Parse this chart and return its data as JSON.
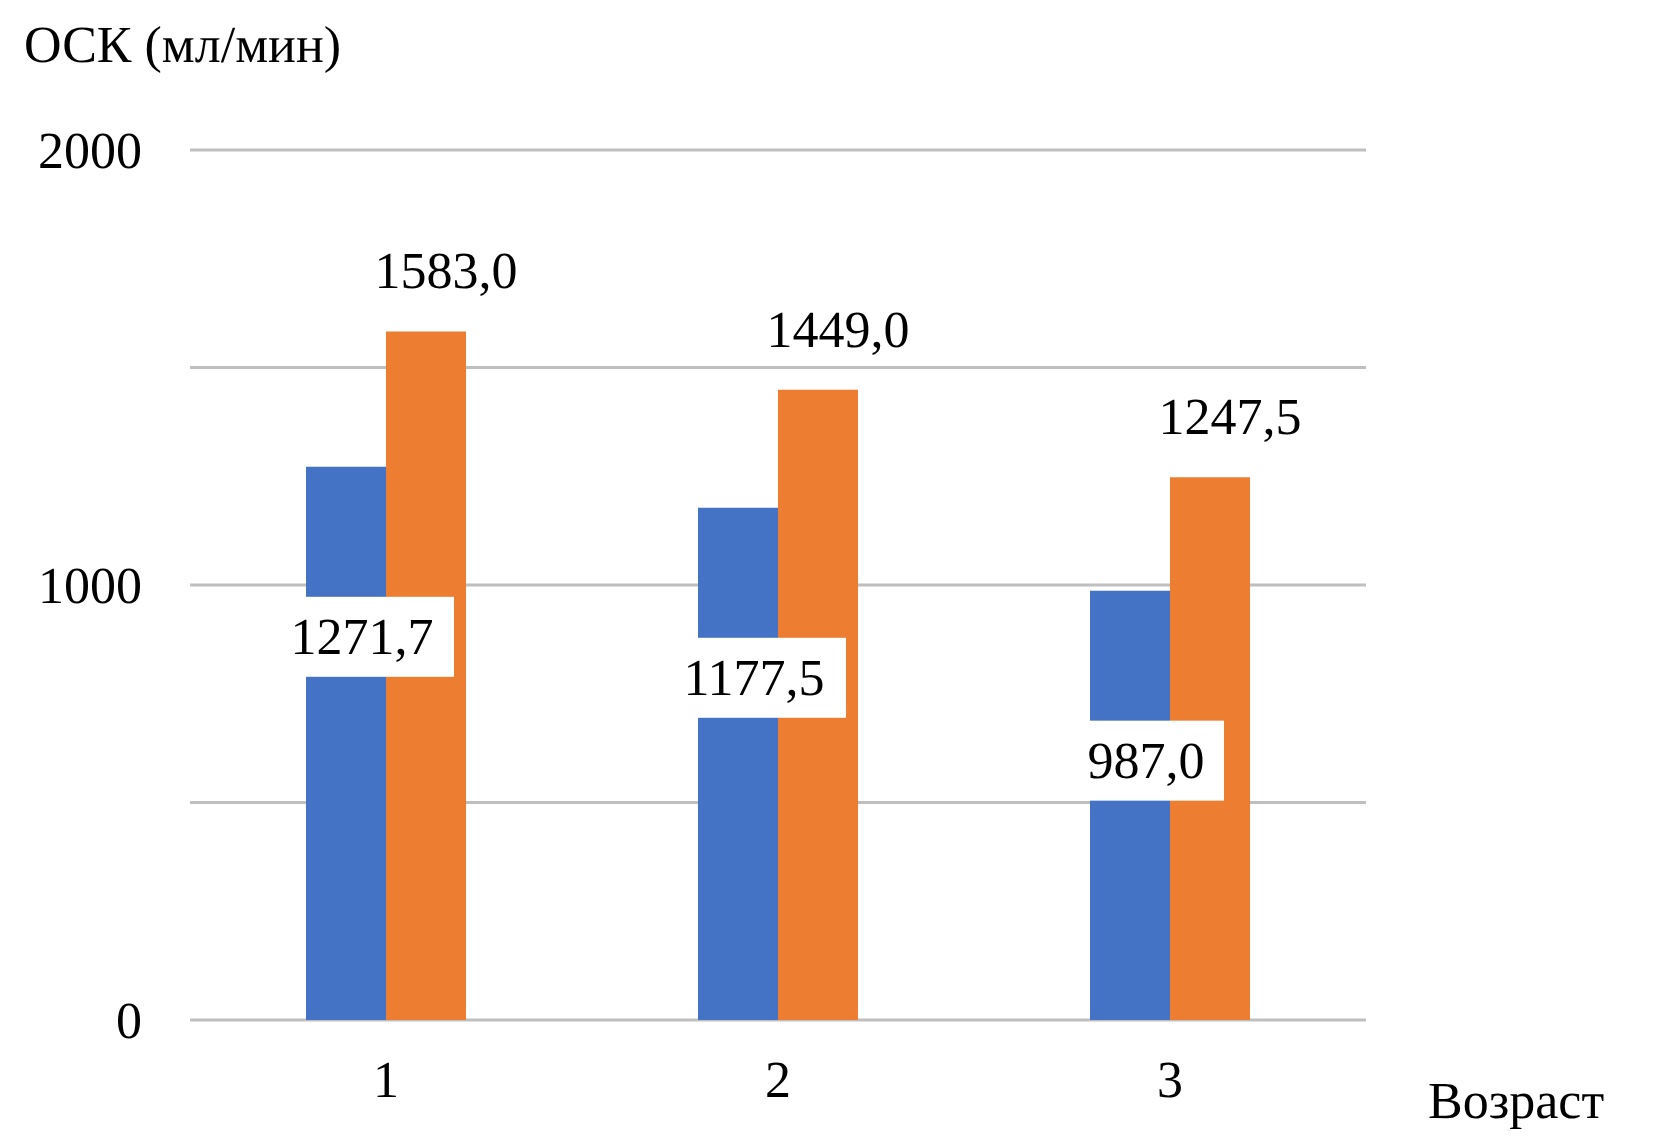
{
  "chart_data": {
    "type": "bar",
    "ylabel": "ОСК (мл/мин)",
    "xlabel": "Возраст",
    "categories": [
      "1",
      "2",
      "3"
    ],
    "series": [
      {
        "color": "#4472c4",
        "values": [
          1271.7,
          1177.5,
          987.0
        ],
        "value_labels": [
          "1271,7",
          "1177,5",
          "987,0"
        ]
      },
      {
        "color": "#ed7d31",
        "values": [
          1583.0,
          1449.0,
          1247.5
        ],
        "value_labels": [
          "1583,0",
          "1449,0",
          "1247,5"
        ]
      }
    ],
    "ylim": [
      0,
      2000
    ],
    "yticks": [
      0,
      {
        "value": 500,
        "label": null
      },
      1000,
      {
        "value": 1500,
        "label": null
      },
      2000
    ],
    "grid": "y"
  }
}
